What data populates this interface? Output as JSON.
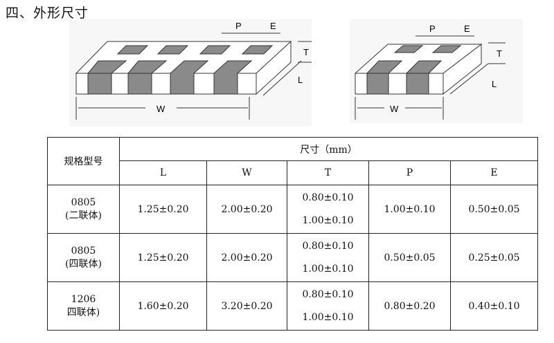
{
  "title": "四、外形尺寸",
  "figure_labels": {
    "P": "P",
    "E": "E",
    "T": "T",
    "L": "L",
    "W": "W"
  },
  "table": {
    "model_header": "规格型号",
    "size_header": "尺寸（mm）",
    "columns": [
      "L",
      "W",
      "T",
      "P",
      "E"
    ],
    "rows": [
      {
        "model": [
          "0805",
          "(二联体)"
        ],
        "L": "1.25±0.20",
        "W": "2.00±0.20",
        "T": [
          "0.80±0.10",
          "1.00±0.10"
        ],
        "P": "1.00±0.10",
        "E": "0.50±0.05"
      },
      {
        "model": [
          "0805",
          "(四联体)"
        ],
        "L": "1.25±0.20",
        "W": "2.00±0.20",
        "T": [
          "0.80±0.10",
          "1.00±0.10"
        ],
        "P": "0.50±0.05",
        "E": "0.25±0.05"
      },
      {
        "model": [
          "1206",
          "四联体)"
        ],
        "L": "1.60±0.20",
        "W": "3.20±0.20",
        "T": [
          "0.80±0.10",
          "1.00±0.10"
        ],
        "P": "0.80±0.20",
        "E": "0.40±0.10"
      }
    ]
  }
}
